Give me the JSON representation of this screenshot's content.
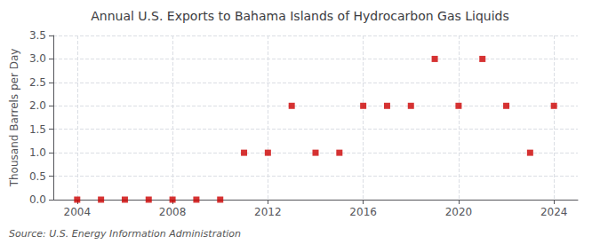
{
  "chart_data": {
    "type": "scatter",
    "title": "Annual U.S. Exports to Bahama Islands of Hydrocarbon Gas Liquids",
    "ylabel": "Thousand Barrels per Day",
    "source": "Source: U.S. Energy Information Administration",
    "x": [
      2004,
      2005,
      2006,
      2007,
      2008,
      2009,
      2010,
      2011,
      2012,
      2013,
      2014,
      2015,
      2016,
      2017,
      2018,
      2019,
      2020,
      2021,
      2022,
      2023,
      2024
    ],
    "values": [
      0.0,
      0.0,
      0.0,
      0.0,
      0.0,
      0.0,
      0.0,
      1.0,
      1.0,
      2.0,
      1.0,
      1.0,
      2.0,
      2.0,
      2.0,
      3.0,
      2.0,
      3.0,
      2.0,
      1.0,
      2.0
    ],
    "color": "#cc0000",
    "marker": "square",
    "xlim": [
      2003,
      2025
    ],
    "xticks": [
      2004,
      2008,
      2012,
      2016,
      2020,
      2024
    ],
    "ylim": [
      0.0,
      3.5
    ],
    "yticks": [
      {
        "value": 0,
        "label": "0.0"
      },
      0.5,
      {
        "value": 1,
        "label": "1.0"
      },
      1.5,
      {
        "value": 2,
        "label": "2.0"
      },
      2.5,
      {
        "value": 3,
        "label": "3.0"
      },
      3.5
    ],
    "grid": true
  }
}
